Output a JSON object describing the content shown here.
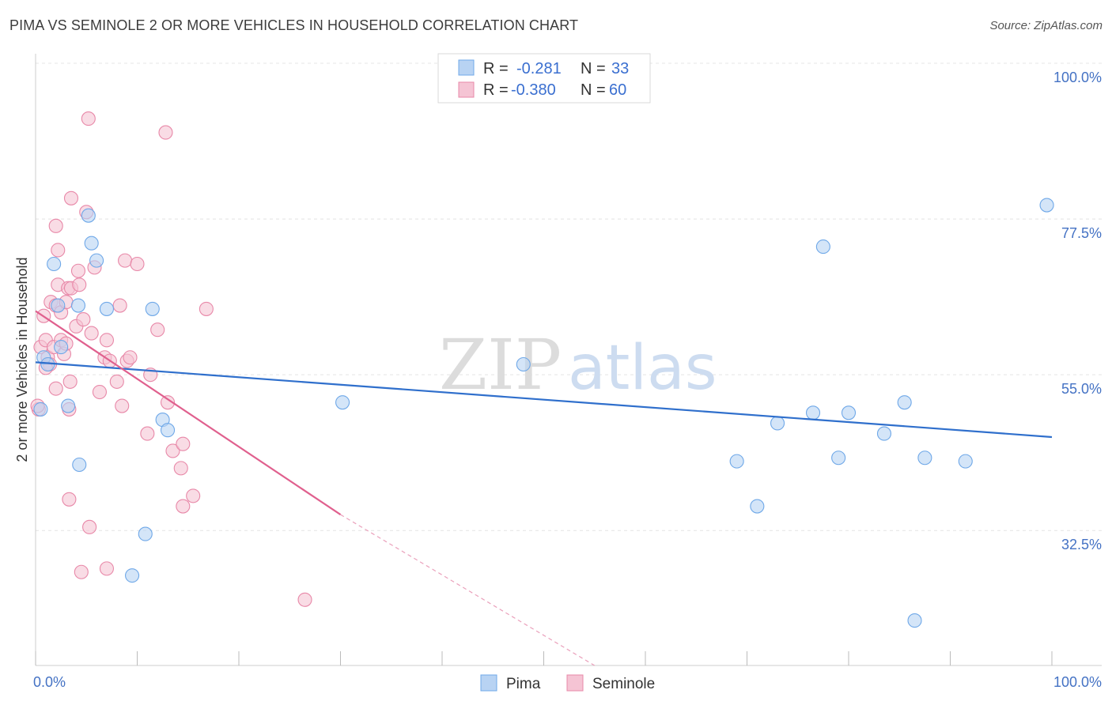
{
  "chart_data": {
    "type": "scatter",
    "title": "PIMA VS SEMINOLE 2 OR MORE VEHICLES IN HOUSEHOLD CORRELATION CHART",
    "source": "Source: ZipAtlas.com",
    "xlabel": "",
    "ylabel": "2 or more Vehicles in Household",
    "xlim": [
      0,
      100
    ],
    "ylim": [
      13,
      100
    ],
    "x_tick_labels": [
      "0.0%",
      "100.0%"
    ],
    "y_ticks": [
      {
        "value": 100.0,
        "label": "100.0%"
      },
      {
        "value": 77.5,
        "label": "77.5%"
      },
      {
        "value": 55.0,
        "label": "55.0%"
      },
      {
        "value": 32.5,
        "label": "32.5%"
      }
    ],
    "grid": true,
    "watermark": {
      "part1": "ZIP",
      "part2": "atlas"
    },
    "legend": {
      "r_label": "R =",
      "n_label": "N =",
      "entries": [
        {
          "r": "-0.281",
          "n": "33"
        },
        {
          "r": "-0.380",
          "n": "60"
        }
      ]
    },
    "series": [
      {
        "name": "Pima",
        "color": "#6fa8e8",
        "fill": "#b8d3f3",
        "trend": {
          "x0": 0,
          "y0": 56.8,
          "x1": 100,
          "y1": 46.0
        },
        "points": [
          [
            0.5,
            50
          ],
          [
            0.8,
            57.5
          ],
          [
            1.2,
            56.5
          ],
          [
            1.8,
            71
          ],
          [
            2.2,
            65
          ],
          [
            2.5,
            59
          ],
          [
            3.2,
            50.5
          ],
          [
            4.2,
            65
          ],
          [
            4.3,
            42
          ],
          [
            5.2,
            78
          ],
          [
            5.5,
            74
          ],
          [
            6.0,
            71.5
          ],
          [
            7.0,
            64.5
          ],
          [
            9.5,
            26
          ],
          [
            10.8,
            32
          ],
          [
            11.5,
            64.5
          ],
          [
            12.5,
            48.5
          ],
          [
            13.0,
            47
          ],
          [
            30.2,
            51
          ],
          [
            48.0,
            56.5
          ],
          [
            69.0,
            42.5
          ],
          [
            71.0,
            36
          ],
          [
            73.0,
            48
          ],
          [
            76.5,
            49.5
          ],
          [
            77.5,
            73.5
          ],
          [
            79.0,
            43
          ],
          [
            80.0,
            49.5
          ],
          [
            83.5,
            46.5
          ],
          [
            85.5,
            51
          ],
          [
            86.5,
            19.5
          ],
          [
            87.5,
            43
          ],
          [
            91.5,
            42.5
          ],
          [
            99.5,
            79.5
          ]
        ]
      },
      {
        "name": "Seminole",
        "color": "#e888a8",
        "fill": "#f5c4d4",
        "trend": {
          "x0": 0,
          "y0": 64.2,
          "x1": 30,
          "y1": 34.8
        },
        "trend_dashed": {
          "x0": 30,
          "y0": 34.8,
          "x1": 55,
          "y1": 13
        },
        "points": [
          [
            0.3,
            50
          ],
          [
            0.5,
            59
          ],
          [
            0.8,
            63.5
          ],
          [
            1.0,
            60
          ],
          [
            1.2,
            57.5
          ],
          [
            1.4,
            56.5
          ],
          [
            1.5,
            65.5
          ],
          [
            1.8,
            59
          ],
          [
            2.0,
            53
          ],
          [
            2.0,
            76.5
          ],
          [
            2.0,
            65
          ],
          [
            2.2,
            73
          ],
          [
            2.2,
            68
          ],
          [
            2.5,
            64
          ],
          [
            2.5,
            60
          ],
          [
            2.8,
            58
          ],
          [
            3.0,
            59.5
          ],
          [
            3.0,
            65.5
          ],
          [
            3.2,
            67.5
          ],
          [
            3.3,
            37
          ],
          [
            3.3,
            50
          ],
          [
            3.4,
            54
          ],
          [
            3.5,
            67.5
          ],
          [
            3.5,
            80.5
          ],
          [
            4.0,
            62
          ],
          [
            4.2,
            70
          ],
          [
            4.3,
            68
          ],
          [
            4.5,
            26.5
          ],
          [
            4.7,
            63
          ],
          [
            5.0,
            78.5
          ],
          [
            5.2,
            92
          ],
          [
            5.3,
            33
          ],
          [
            5.5,
            61
          ],
          [
            5.8,
            70.5
          ],
          [
            6.3,
            52.5
          ],
          [
            6.8,
            57.5
          ],
          [
            7.0,
            60
          ],
          [
            7.0,
            27
          ],
          [
            7.3,
            57
          ],
          [
            8.0,
            54
          ],
          [
            8.3,
            65
          ],
          [
            8.5,
            50.5
          ],
          [
            8.8,
            71.5
          ],
          [
            9.0,
            57
          ],
          [
            9.3,
            57.5
          ],
          [
            10.0,
            71
          ],
          [
            11.0,
            46.5
          ],
          [
            11.3,
            55
          ],
          [
            12.0,
            61.5
          ],
          [
            12.8,
            90
          ],
          [
            13.0,
            51
          ],
          [
            13.5,
            44
          ],
          [
            14.3,
            41.5
          ],
          [
            14.5,
            45
          ],
          [
            14.5,
            36
          ],
          [
            15.5,
            37.5
          ],
          [
            16.8,
            64.5
          ],
          [
            26.5,
            22.5
          ],
          [
            0.2,
            50.5
          ],
          [
            1.0,
            56
          ]
        ]
      }
    ]
  }
}
